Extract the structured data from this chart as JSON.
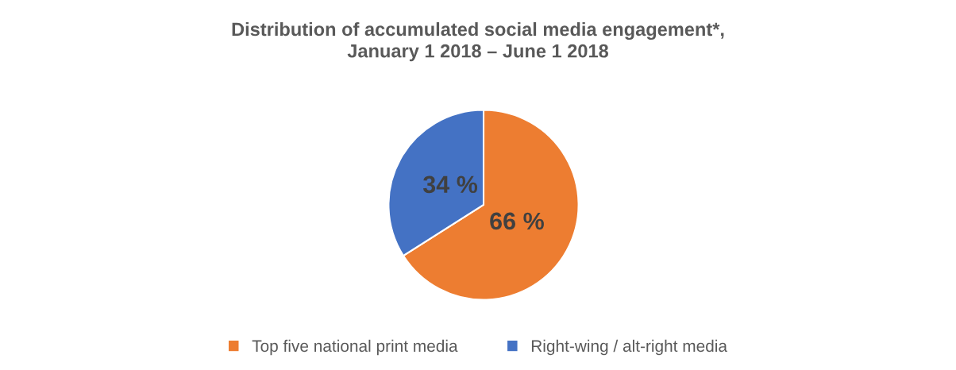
{
  "chart_data": {
    "type": "pie",
    "title": "Distribution of accumulated social media engagement*,\nJanuary 1 2018 – June 1 2018",
    "categories": [
      "Top five national print media",
      "Right-wing / alt-right media"
    ],
    "values": [
      66,
      34
    ],
    "colors": [
      "#ed7d31",
      "#4472c4"
    ],
    "value_labels": [
      "66 %",
      "34 %"
    ],
    "legend": "bottom"
  }
}
